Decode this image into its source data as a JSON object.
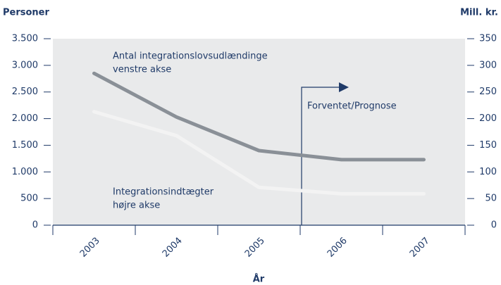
{
  "chart_data": {
    "type": "line",
    "y_label": "Personer",
    "y2_label": "Mill. kr.",
    "x_label": "År",
    "categories": [
      "2003",
      "2004",
      "2005",
      "2006",
      "2007"
    ],
    "series": [
      {
        "name": "Antal integrationslovsudlændinge",
        "color": "#8a9097",
        "values": [
          2850,
          2030,
          1400,
          1230,
          1230
        ]
      },
      {
        "name": "Integrationsindtægter",
        "color": "#f3f3f3",
        "axis": "y2",
        "values": [
          213,
          168,
          71,
          59,
          59
        ]
      }
    ],
    "annotations": [
      "venstre akse",
      "højre akse",
      "Forventet/Prognose"
    ],
    "ylim": [
      0,
      3500
    ],
    "yticks": [
      0,
      500,
      {
        "value": 1000,
        "label": "1.000"
      },
      {
        "value": 1500,
        "label": "1.500"
      },
      {
        "value": 2000,
        "label": "2.000"
      },
      {
        "value": 2500,
        "label": "2.500"
      },
      {
        "value": 3000,
        "label": "3.000"
      },
      {
        "value": 3500,
        "label": "3.500"
      }
    ],
    "y2lim": [
      0,
      350
    ],
    "y2ticks": [
      0,
      50,
      100,
      150,
      200,
      250,
      300,
      350
    ],
    "background": "#e9eaeb"
  }
}
